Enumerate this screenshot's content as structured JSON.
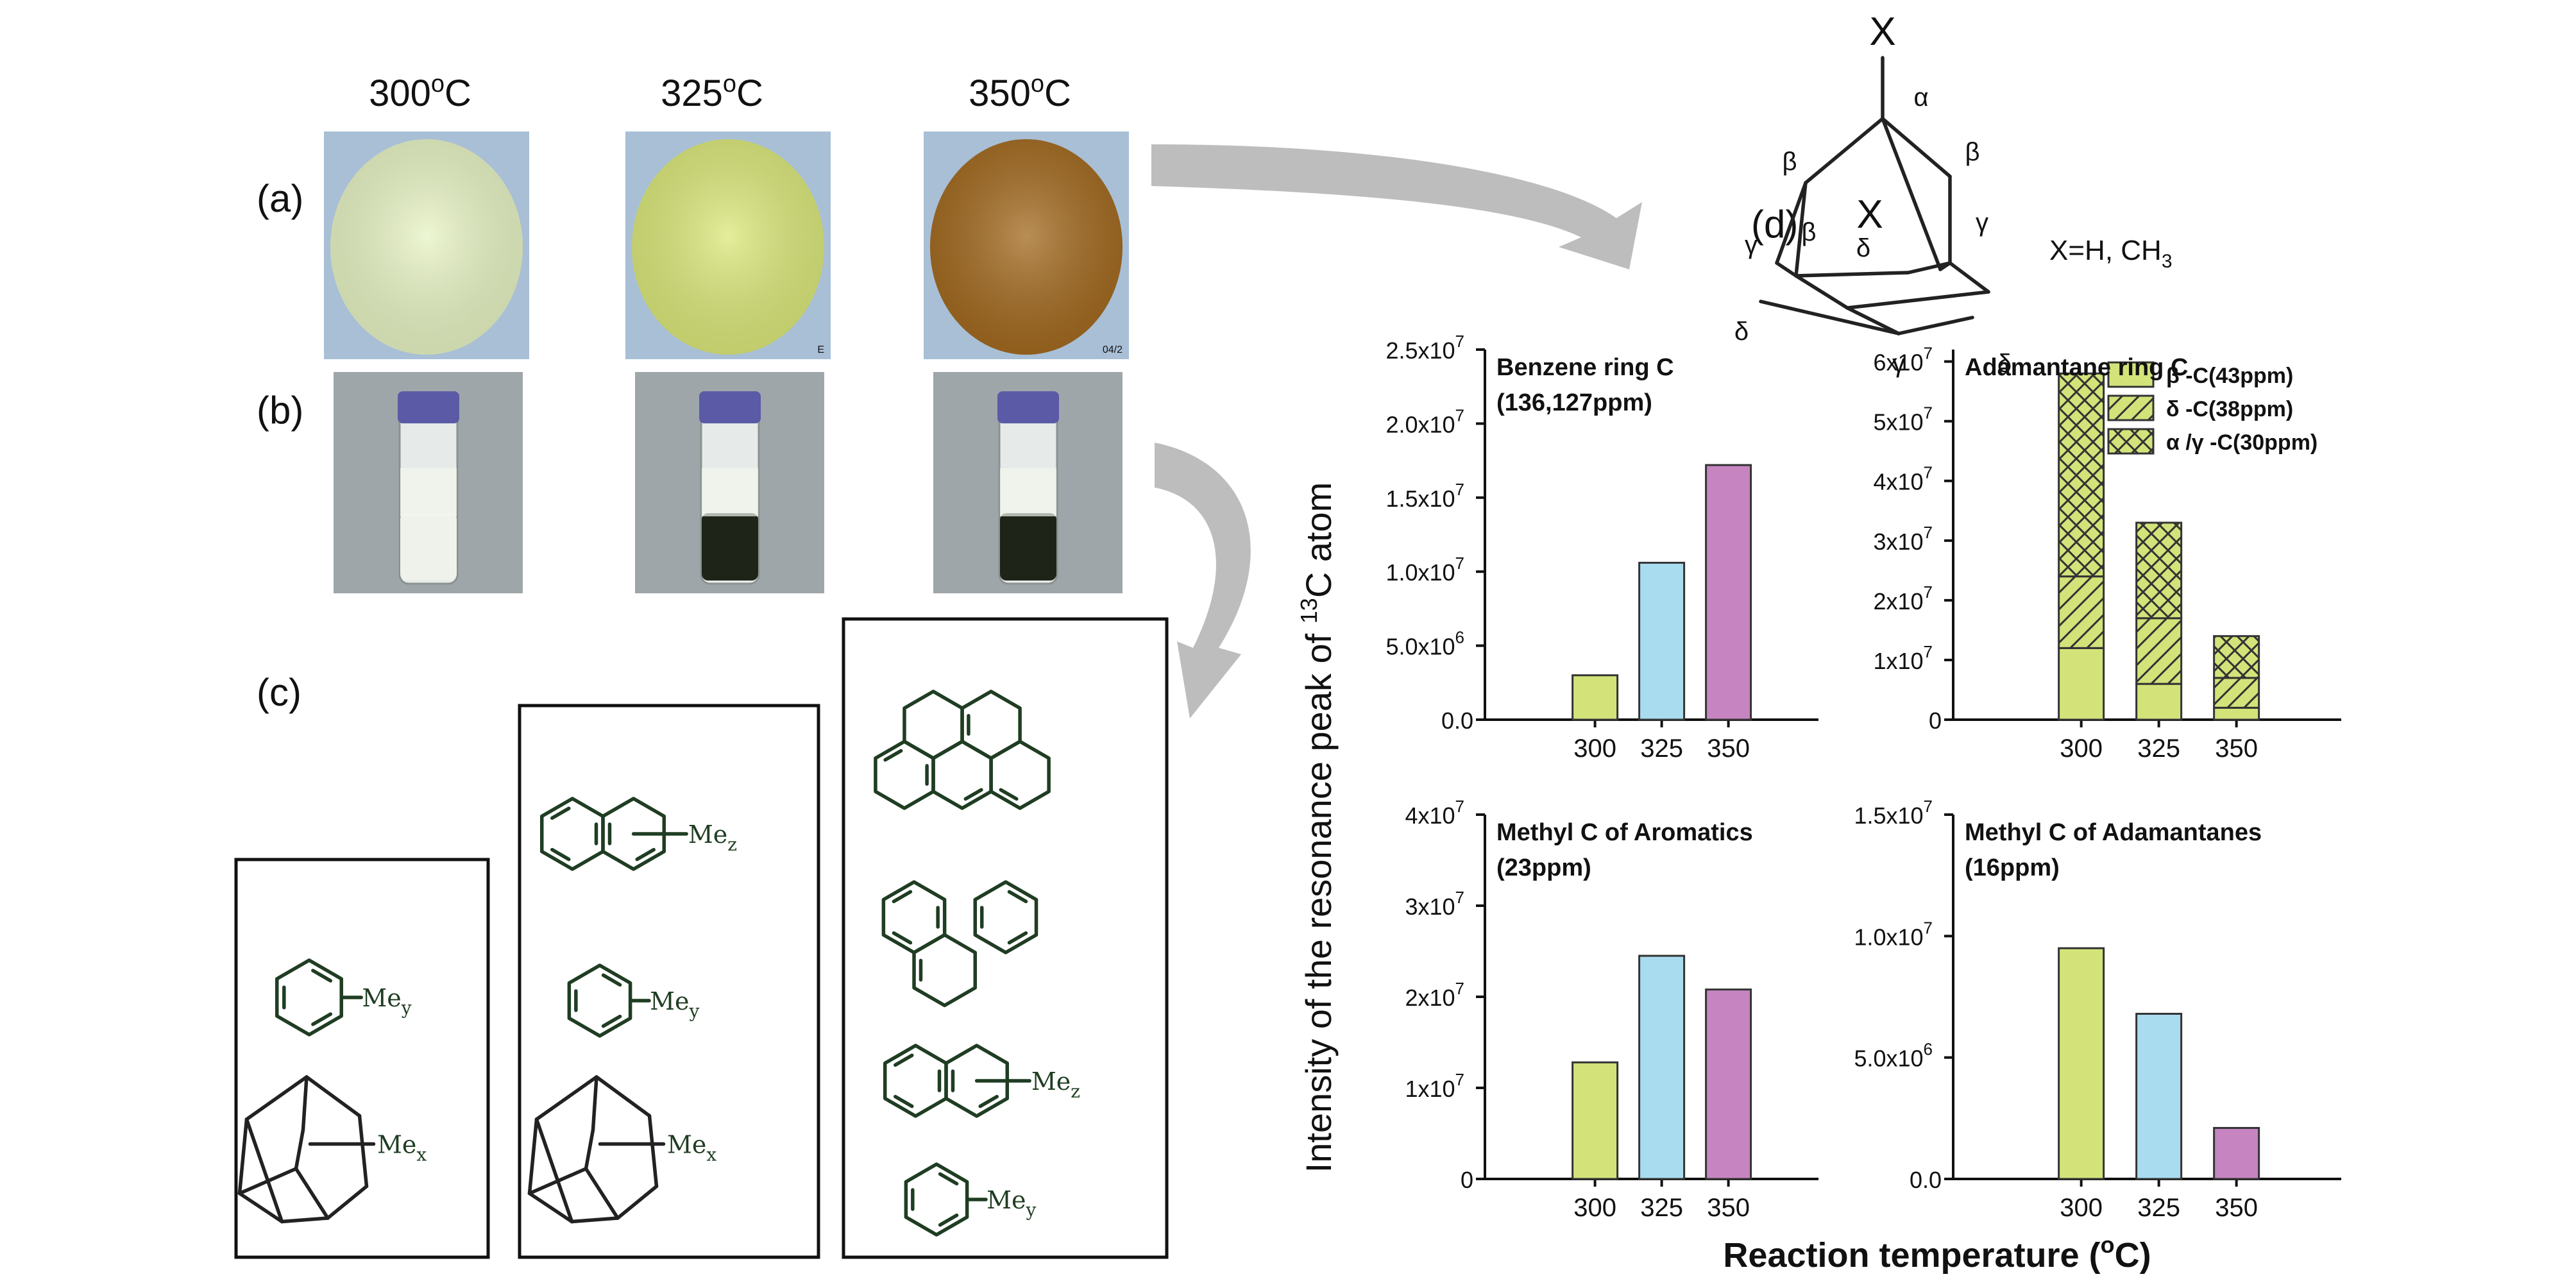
{
  "temperatures": [
    {
      "label": "300",
      "unit": "°C"
    },
    {
      "label": "325",
      "unit": "°C"
    },
    {
      "label": "350",
      "unit": "°C"
    }
  ],
  "panel_labels": {
    "a": "(a)",
    "b": "(b)",
    "c": "(c)",
    "d": "(d)"
  },
  "powder_colors": [
    "#e8f4c4",
    "#dbe87a",
    "#a2691e"
  ],
  "liquid_colors": [
    "#eef2ea",
    "#1e2418",
    "#1e2418"
  ],
  "cap_color": "#5b5aa6",
  "photo_marks": [
    "",
    "E",
    "04/2"
  ],
  "structure": {
    "x_label": "X",
    "substituent": "X=H, CH",
    "substituent_sub": "3",
    "greek": {
      "alpha": "α",
      "beta": "β",
      "gamma": "γ",
      "delta": "δ"
    }
  },
  "chem_labels": {
    "me": "Me",
    "x": "x",
    "y": "y",
    "z": "z"
  },
  "y_axis_label": {
    "pre": "Intensity of the resonance peak of ",
    "sup": "13",
    "post": "C atom"
  },
  "x_axis_label": {
    "pre": "Reaction temperature (",
    "sup": "o",
    "post": "C)"
  },
  "chart_data": [
    {
      "type": "bar",
      "title": "Benzene ring C",
      "subtitle": "(136,127ppm)",
      "categories": [
        "300",
        "325",
        "350"
      ],
      "values": [
        3000000.0,
        10600000.0,
        17200000.0
      ],
      "ylim": [
        0,
        25000000.0
      ],
      "ticks": [
        {
          "v": 0,
          "m": "0.0",
          "e": ""
        },
        {
          "v": 5000000.0,
          "m": "5.0x10",
          "e": "6"
        },
        {
          "v": 10000000.0,
          "m": "1.0x10",
          "e": "7"
        },
        {
          "v": 15000000.0,
          "m": "1.5x10",
          "e": "7"
        },
        {
          "v": 20000000.0,
          "m": "2.0x10",
          "e": "7"
        },
        {
          "v": 25000000.0,
          "m": "2.5x10",
          "e": "7"
        }
      ]
    },
    {
      "type": "bar",
      "stacked": true,
      "title": "Adamantane ring C",
      "categories": [
        "300",
        "325",
        "350"
      ],
      "series": [
        {
          "name": "β -C(43ppm)",
          "pattern": "solid",
          "values": [
            12000000.0,
            6000000.0,
            2000000.0
          ]
        },
        {
          "name": "δ -C(38ppm)",
          "pattern": "hatch",
          "values": [
            12000000.0,
            11000000.0,
            5000000.0
          ]
        },
        {
          "name": "α /γ -C(30ppm)",
          "pattern": "cross",
          "values": [
            34000000.0,
            16000000.0,
            7000000.0
          ]
        }
      ],
      "ylim": [
        0,
        62000000.0
      ],
      "ticks": [
        {
          "v": 0,
          "m": "0",
          "e": ""
        },
        {
          "v": 10000000.0,
          "m": "1x10",
          "e": "7"
        },
        {
          "v": 20000000.0,
          "m": "2x10",
          "e": "7"
        },
        {
          "v": 30000000.0,
          "m": "3x10",
          "e": "7"
        },
        {
          "v": 40000000.0,
          "m": "4x10",
          "e": "7"
        },
        {
          "v": 50000000.0,
          "m": "5x10",
          "e": "7"
        },
        {
          "v": 60000000.0,
          "m": "6x10",
          "e": "7"
        }
      ]
    },
    {
      "type": "bar",
      "title": "Methyl C of Aromatics",
      "subtitle": "(23ppm)",
      "categories": [
        "300",
        "325",
        "350"
      ],
      "values": [
        12800000.0,
        24500000.0,
        20800000.0
      ],
      "ylim": [
        0,
        40000000.0
      ],
      "ticks": [
        {
          "v": 0,
          "m": "0",
          "e": ""
        },
        {
          "v": 10000000.0,
          "m": "1x10",
          "e": "7"
        },
        {
          "v": 20000000.0,
          "m": "2x10",
          "e": "7"
        },
        {
          "v": 30000000.0,
          "m": "3x10",
          "e": "7"
        },
        {
          "v": 40000000.0,
          "m": "4x10",
          "e": "7"
        }
      ]
    },
    {
      "type": "bar",
      "title": "Methyl C of Adamantanes",
      "subtitle": "(16ppm)",
      "categories": [
        "300",
        "325",
        "350"
      ],
      "values": [
        9500000.0,
        6800000.0,
        2100000.0
      ],
      "ylim": [
        0,
        15000000.0
      ],
      "ticks": [
        {
          "v": 0,
          "m": "0.0",
          "e": ""
        },
        {
          "v": 5000000.0,
          "m": "5.0x10",
          "e": "6"
        },
        {
          "v": 10000000.0,
          "m": "1.0x10",
          "e": "7"
        },
        {
          "v": 15000000.0,
          "m": "1.5x10",
          "e": "7"
        }
      ]
    }
  ],
  "bar_colors": [
    "#d3e37a",
    "#a9dcef",
    "#c685c0"
  ]
}
